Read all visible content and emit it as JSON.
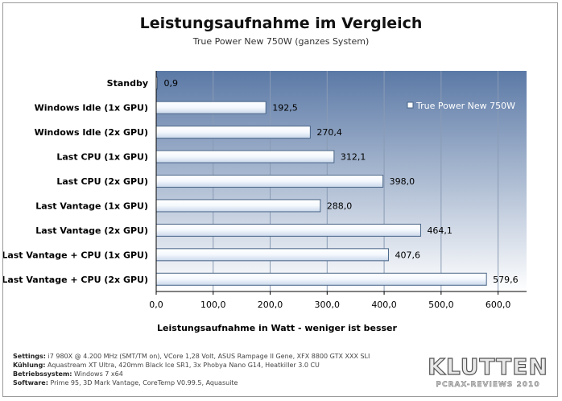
{
  "chart_data": {
    "type": "bar",
    "orientation": "horizontal",
    "title": "Leistungsaufnahme im Vergleich",
    "subtitle": "True Power New 750W (ganzes System)",
    "xlabel": "Leistungsaufnahme in Watt - weniger ist besser",
    "categories": [
      "Standby",
      "Windows Idle (1x GPU)",
      "Windows Idle (2x GPU)",
      "Last CPU (1x GPU)",
      "Last CPU (2x GPU)",
      "Last Vantage (1x GPU)",
      "Last Vantage (2x GPU)",
      "Last Vantage + CPU (1x GPU)",
      "Last Vantage + CPU (2x GPU)"
    ],
    "series": [
      {
        "name": "True Power New 750W",
        "values": [
          0.9,
          192.5,
          270.4,
          312.1,
          398.0,
          288.0,
          464.1,
          407.6,
          579.6
        ],
        "labels": [
          "0,9",
          "192,5",
          "270,4",
          "312,1",
          "398,0",
          "288,0",
          "464,1",
          "407,6",
          "579,6"
        ],
        "color": "#ffffff"
      }
    ],
    "xlim": [
      0,
      650
    ],
    "xticks": [
      0,
      100,
      200,
      300,
      400,
      500,
      600
    ],
    "xtick_labels": [
      "0,0",
      "100,0",
      "200,0",
      "300,0",
      "400,0",
      "500,0",
      "600,0"
    ],
    "grid": true,
    "legend_position": "top-right",
    "colors": {
      "plot_top": "#5b79a6",
      "plot_bottom": "#ffffff",
      "bar_border": "#4a6688",
      "gridline": "#8a9bb4"
    }
  },
  "footer": [
    {
      "label": "Settings:",
      "text": "i7 980X @ 4.200 MHz (SMT/TM on), VCore 1,28 Volt, ASUS Rampage II Gene, XFX 8800 GTX XXX SLI"
    },
    {
      "label": "Kühlung:",
      "text": "Aquastream XT Ultra, 420mm Black Ice SR1, 3x Phobya Nano G14, Heatkiller 3.0 CU"
    },
    {
      "label": "Betriebssystem:",
      "text": "Windows 7 x64"
    },
    {
      "label": "Software:",
      "text": "Prime 95, 3D Mark Vantage, CoreTemp V0.99.5, Aquasuite"
    }
  ],
  "logo": {
    "main": "KLUTTEN",
    "sub": "PCRAX-REVIEWS 2010"
  }
}
